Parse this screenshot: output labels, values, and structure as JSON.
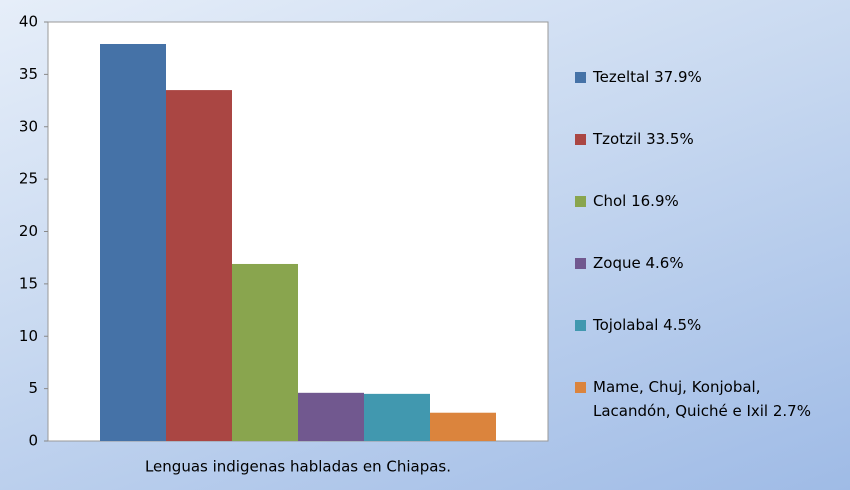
{
  "chart_data": {
    "type": "bar",
    "categories": [
      "Lenguas indigenas habladas en Chiapas."
    ],
    "series": [
      {
        "name": "Tezeltal 37.9%",
        "color": "#4572a7",
        "values": [
          37.9
        ]
      },
      {
        "name": "Tzotzil 33.5%",
        "color": "#aa4643",
        "values": [
          33.5
        ]
      },
      {
        "name": "Chol 16.9%",
        "color": "#89a54e",
        "values": [
          16.9
        ]
      },
      {
        "name": "Zoque 4.6%",
        "color": "#71588f",
        "values": [
          4.6
        ]
      },
      {
        "name": "Tojolabal 4.5%",
        "color": "#4198af",
        "values": [
          4.5
        ]
      },
      {
        "name": "Mame, Chuj, Konjobal, Lacandón, Quiché e Ixil 2.7%",
        "color": "#db843d",
        "values": [
          2.7
        ]
      }
    ],
    "ylim": [
      0,
      40
    ],
    "yticks": [
      0,
      5,
      10,
      15,
      20,
      25,
      30,
      35,
      40
    ],
    "grid": false,
    "legend": "right"
  }
}
